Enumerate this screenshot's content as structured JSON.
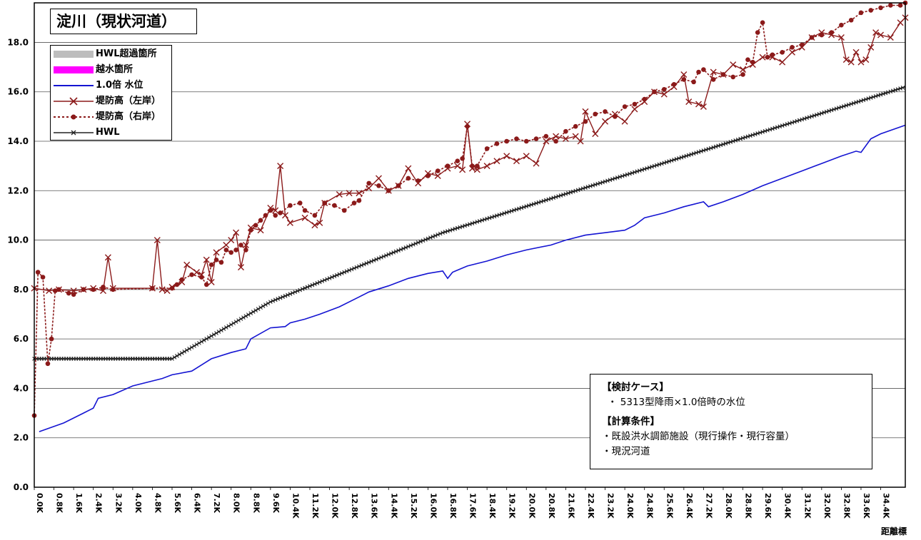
{
  "title": "淀川（現状河道）",
  "legend": [
    {
      "key": "hwl_exceed",
      "label": "HWL超過箇所",
      "color": "#bdbdbd",
      "style": "band"
    },
    {
      "key": "overflow",
      "label": "越水箇所",
      "color": "#ff00ff",
      "style": "band"
    },
    {
      "key": "water",
      "label": "1.0倍 水位",
      "color": "#1414d2",
      "style": "line"
    },
    {
      "key": "left_bank",
      "label": "堤防高（左岸）",
      "color": "#8b1a1a",
      "style": "line-x"
    },
    {
      "key": "right_bank",
      "label": "堤防高（右岸）",
      "color": "#8b1a1a",
      "style": "dotted-dot"
    },
    {
      "key": "hwl",
      "label": "HWL",
      "color": "#222222",
      "style": "line-x-small"
    }
  ],
  "info": {
    "case_header": "【検討ケース】",
    "case_text": "・ 5313型降雨×1.0倍時の水位",
    "cond_header": "【計算条件】",
    "cond_line1": "・既設洪水調節施設（現行操作・現行容量）",
    "cond_line2": "・現況河道"
  },
  "x_axis_title": "距離標",
  "chart_data": {
    "type": "line",
    "xlabel": "距離標",
    "ylabel": "",
    "xlim": [
      0,
      35.4
    ],
    "ylim": [
      0,
      19.6
    ],
    "y_ticks": [
      "0.0",
      "2.0",
      "4.0",
      "6.0",
      "8.0",
      "10.0",
      "12.0",
      "14.0",
      "16.0",
      "18.0"
    ],
    "x_ticks": [
      "0.0K",
      "0.8K",
      "1.6K",
      "2.4K",
      "3.2K",
      "4.0K",
      "4.8K",
      "5.6K",
      "6.4K",
      "7.2K",
      "8.0K",
      "8.8K",
      "9.6K",
      "10.4K",
      "11.2K",
      "12.0K",
      "12.8K",
      "13.6K",
      "14.4K",
      "15.2K",
      "16.0K",
      "16.8K",
      "17.6K",
      "18.4K",
      "19.2K",
      "20.0K",
      "20.8K",
      "21.6K",
      "22.4K",
      "23.2K",
      "24.0K",
      "24.8K",
      "25.6K",
      "26.4K",
      "27.2K",
      "28.0K",
      "28.8K",
      "29.6K",
      "30.4K",
      "31.2K",
      "32.0K",
      "32.8K",
      "33.6K",
      "34.4K"
    ],
    "grid": "horizontal",
    "series": [
      {
        "name": "HWL",
        "color": "#222222",
        "points": [
          [
            0,
            5.2
          ],
          [
            5.6,
            5.2
          ],
          [
            9.6,
            7.5
          ],
          [
            16.6,
            10.3
          ],
          [
            35.4,
            16.2
          ]
        ]
      },
      {
        "name": "1.0倍 水位",
        "color": "#1414d2",
        "points": [
          [
            0.2,
            2.25
          ],
          [
            1.2,
            2.6
          ],
          [
            2.0,
            3.0
          ],
          [
            2.4,
            3.2
          ],
          [
            2.6,
            3.6
          ],
          [
            3.2,
            3.75
          ],
          [
            4.0,
            4.1
          ],
          [
            5.2,
            4.4
          ],
          [
            5.6,
            4.55
          ],
          [
            6.4,
            4.7
          ],
          [
            7.2,
            5.2
          ],
          [
            8.0,
            5.45
          ],
          [
            8.6,
            5.6
          ],
          [
            8.8,
            6.0
          ],
          [
            9.6,
            6.45
          ],
          [
            10.2,
            6.5
          ],
          [
            10.4,
            6.65
          ],
          [
            11.0,
            6.8
          ],
          [
            11.6,
            7.0
          ],
          [
            12.4,
            7.3
          ],
          [
            13.2,
            7.7
          ],
          [
            13.6,
            7.9
          ],
          [
            14.4,
            8.15
          ],
          [
            15.2,
            8.45
          ],
          [
            16.0,
            8.65
          ],
          [
            16.6,
            8.75
          ],
          [
            16.8,
            8.45
          ],
          [
            17.0,
            8.7
          ],
          [
            17.6,
            8.95
          ],
          [
            18.4,
            9.15
          ],
          [
            19.2,
            9.4
          ],
          [
            20.0,
            9.6
          ],
          [
            21.0,
            9.8
          ],
          [
            21.6,
            10.0
          ],
          [
            22.4,
            10.2
          ],
          [
            23.2,
            10.3
          ],
          [
            24.0,
            10.4
          ],
          [
            24.4,
            10.6
          ],
          [
            24.8,
            10.9
          ],
          [
            25.6,
            11.1
          ],
          [
            26.4,
            11.35
          ],
          [
            27.2,
            11.55
          ],
          [
            27.4,
            11.35
          ],
          [
            28.0,
            11.55
          ],
          [
            28.8,
            11.85
          ],
          [
            29.6,
            12.2
          ],
          [
            30.4,
            12.5
          ],
          [
            31.2,
            12.8
          ],
          [
            32.0,
            13.1
          ],
          [
            32.8,
            13.4
          ],
          [
            33.4,
            13.6
          ],
          [
            33.6,
            13.55
          ],
          [
            34.0,
            14.1
          ],
          [
            34.4,
            14.3
          ],
          [
            35.4,
            14.65
          ]
        ]
      },
      {
        "name": "堤防高（左岸）",
        "color": "#8b1a1a",
        "points": [
          [
            0,
            8.05
          ],
          [
            0.6,
            7.95
          ],
          [
            1.0,
            8.0
          ],
          [
            1.6,
            7.95
          ],
          [
            2.0,
            8.0
          ],
          [
            2.4,
            8.05
          ],
          [
            2.8,
            7.95
          ],
          [
            3.0,
            9.3
          ],
          [
            3.2,
            8.05
          ],
          [
            4.8,
            8.05
          ],
          [
            5.0,
            10.0
          ],
          [
            5.2,
            8.0
          ],
          [
            5.4,
            7.95
          ],
          [
            5.6,
            8.1
          ],
          [
            6.0,
            8.3
          ],
          [
            6.2,
            9.0
          ],
          [
            6.6,
            8.7
          ],
          [
            6.8,
            8.6
          ],
          [
            7.0,
            9.2
          ],
          [
            7.2,
            8.3
          ],
          [
            7.4,
            9.5
          ],
          [
            7.8,
            9.8
          ],
          [
            8.0,
            10.0
          ],
          [
            8.2,
            10.3
          ],
          [
            8.4,
            8.9
          ],
          [
            8.6,
            9.8
          ],
          [
            8.8,
            10.5
          ],
          [
            9.2,
            10.4
          ],
          [
            9.6,
            11.3
          ],
          [
            9.8,
            11.2
          ],
          [
            10.0,
            13.0
          ],
          [
            10.2,
            11.0
          ],
          [
            10.4,
            10.7
          ],
          [
            11.0,
            10.9
          ],
          [
            11.4,
            10.6
          ],
          [
            11.6,
            10.7
          ],
          [
            11.8,
            11.5
          ],
          [
            12.4,
            11.85
          ],
          [
            12.8,
            11.9
          ],
          [
            13.2,
            11.9
          ],
          [
            13.6,
            12.1
          ],
          [
            14.0,
            12.5
          ],
          [
            14.4,
            12.0
          ],
          [
            14.8,
            12.2
          ],
          [
            15.2,
            12.9
          ],
          [
            15.6,
            12.3
          ],
          [
            16.0,
            12.7
          ],
          [
            16.4,
            12.6
          ],
          [
            16.8,
            12.9
          ],
          [
            17.2,
            13.0
          ],
          [
            17.4,
            12.85
          ],
          [
            17.6,
            14.7
          ],
          [
            17.8,
            12.9
          ],
          [
            18.0,
            12.85
          ],
          [
            18.4,
            13.0
          ],
          [
            18.8,
            13.2
          ],
          [
            19.2,
            13.4
          ],
          [
            19.6,
            13.2
          ],
          [
            20.0,
            13.4
          ],
          [
            20.4,
            13.1
          ],
          [
            20.8,
            14.0
          ],
          [
            21.2,
            14.2
          ],
          [
            21.6,
            14.1
          ],
          [
            22.0,
            14.2
          ],
          [
            22.2,
            14.0
          ],
          [
            22.4,
            15.2
          ],
          [
            22.8,
            14.3
          ],
          [
            23.2,
            14.8
          ],
          [
            23.6,
            15.1
          ],
          [
            24.0,
            14.8
          ],
          [
            24.4,
            15.3
          ],
          [
            24.8,
            15.6
          ],
          [
            25.2,
            16.0
          ],
          [
            25.6,
            15.9
          ],
          [
            26.0,
            16.2
          ],
          [
            26.4,
            16.7
          ],
          [
            26.6,
            15.6
          ],
          [
            27.0,
            15.5
          ],
          [
            27.2,
            15.4
          ],
          [
            27.6,
            16.8
          ],
          [
            28.0,
            16.7
          ],
          [
            28.4,
            17.1
          ],
          [
            28.8,
            16.9
          ],
          [
            29.2,
            17.1
          ],
          [
            29.6,
            17.4
          ],
          [
            30.0,
            17.4
          ],
          [
            30.4,
            17.2
          ],
          [
            30.8,
            17.6
          ],
          [
            31.2,
            17.8
          ],
          [
            31.6,
            18.2
          ],
          [
            32.0,
            18.4
          ],
          [
            32.4,
            18.3
          ],
          [
            32.8,
            18.2
          ],
          [
            33.0,
            17.3
          ],
          [
            33.2,
            17.2
          ],
          [
            33.4,
            17.6
          ],
          [
            33.6,
            17.2
          ],
          [
            33.8,
            17.3
          ],
          [
            34.0,
            17.8
          ],
          [
            34.2,
            18.4
          ],
          [
            34.4,
            18.3
          ],
          [
            34.8,
            18.2
          ],
          [
            35.2,
            18.8
          ],
          [
            35.4,
            19.0
          ]
        ]
      },
      {
        "name": "堤防高（右岸）",
        "color": "#8b1a1a",
        "points": [
          [
            0,
            2.9
          ],
          [
            0.15,
            8.7
          ],
          [
            0.35,
            8.5
          ],
          [
            0.55,
            5.0
          ],
          [
            0.7,
            6.0
          ],
          [
            0.85,
            7.95
          ],
          [
            1.0,
            8.0
          ],
          [
            1.4,
            7.85
          ],
          [
            1.6,
            7.8
          ],
          [
            2.0,
            8.0
          ],
          [
            2.4,
            8.0
          ],
          [
            2.8,
            8.1
          ],
          [
            3.2,
            8.0
          ],
          [
            4.8,
            8.05
          ],
          [
            5.6,
            8.05
          ],
          [
            5.8,
            8.2
          ],
          [
            6.0,
            8.4
          ],
          [
            6.4,
            8.6
          ],
          [
            6.8,
            8.5
          ],
          [
            7.0,
            8.2
          ],
          [
            7.2,
            9.0
          ],
          [
            7.4,
            9.2
          ],
          [
            7.6,
            9.1
          ],
          [
            7.8,
            9.6
          ],
          [
            8.0,
            9.5
          ],
          [
            8.2,
            9.6
          ],
          [
            8.4,
            9.8
          ],
          [
            8.6,
            9.6
          ],
          [
            8.8,
            10.4
          ],
          [
            9.0,
            10.6
          ],
          [
            9.2,
            10.8
          ],
          [
            9.4,
            11.0
          ],
          [
            9.6,
            11.2
          ],
          [
            9.8,
            11.0
          ],
          [
            10.0,
            11.1
          ],
          [
            10.4,
            11.4
          ],
          [
            10.8,
            11.5
          ],
          [
            11.0,
            11.2
          ],
          [
            11.4,
            11.0
          ],
          [
            11.8,
            11.5
          ],
          [
            12.2,
            11.4
          ],
          [
            12.6,
            11.2
          ],
          [
            13.0,
            11.5
          ],
          [
            13.2,
            11.6
          ],
          [
            13.6,
            12.3
          ],
          [
            14.0,
            12.2
          ],
          [
            14.4,
            12.0
          ],
          [
            14.8,
            12.2
          ],
          [
            15.2,
            12.5
          ],
          [
            15.6,
            12.4
          ],
          [
            16.0,
            12.6
          ],
          [
            16.4,
            12.8
          ],
          [
            16.8,
            13.0
          ],
          [
            17.2,
            13.2
          ],
          [
            17.4,
            13.3
          ],
          [
            17.6,
            14.6
          ],
          [
            17.8,
            13.0
          ],
          [
            18.0,
            13.0
          ],
          [
            18.4,
            13.7
          ],
          [
            18.8,
            13.9
          ],
          [
            19.2,
            14.0
          ],
          [
            19.6,
            14.1
          ],
          [
            20.0,
            14.0
          ],
          [
            20.4,
            14.1
          ],
          [
            20.8,
            14.2
          ],
          [
            21.2,
            14.0
          ],
          [
            21.6,
            14.4
          ],
          [
            22.0,
            14.6
          ],
          [
            22.4,
            14.8
          ],
          [
            22.8,
            15.1
          ],
          [
            23.2,
            15.2
          ],
          [
            23.6,
            15.0
          ],
          [
            24.0,
            15.4
          ],
          [
            24.4,
            15.5
          ],
          [
            24.8,
            15.7
          ],
          [
            25.2,
            16.0
          ],
          [
            25.6,
            16.1
          ],
          [
            26.0,
            16.3
          ],
          [
            26.4,
            16.5
          ],
          [
            26.8,
            16.4
          ],
          [
            27.0,
            16.8
          ],
          [
            27.2,
            16.9
          ],
          [
            27.6,
            16.5
          ],
          [
            28.0,
            16.7
          ],
          [
            28.4,
            16.6
          ],
          [
            28.8,
            16.7
          ],
          [
            29.0,
            17.3
          ],
          [
            29.2,
            17.2
          ],
          [
            29.4,
            18.4
          ],
          [
            29.6,
            18.8
          ],
          [
            29.8,
            17.4
          ],
          [
            30.0,
            17.5
          ],
          [
            30.4,
            17.6
          ],
          [
            30.8,
            17.8
          ],
          [
            31.2,
            17.9
          ],
          [
            31.6,
            18.2
          ],
          [
            32.0,
            18.3
          ],
          [
            32.4,
            18.4
          ],
          [
            32.8,
            18.7
          ],
          [
            33.2,
            18.9
          ],
          [
            33.6,
            19.2
          ],
          [
            34.0,
            19.3
          ],
          [
            34.4,
            19.4
          ],
          [
            34.8,
            19.5
          ],
          [
            35.2,
            19.5
          ],
          [
            35.4,
            19.6
          ]
        ]
      }
    ]
  }
}
